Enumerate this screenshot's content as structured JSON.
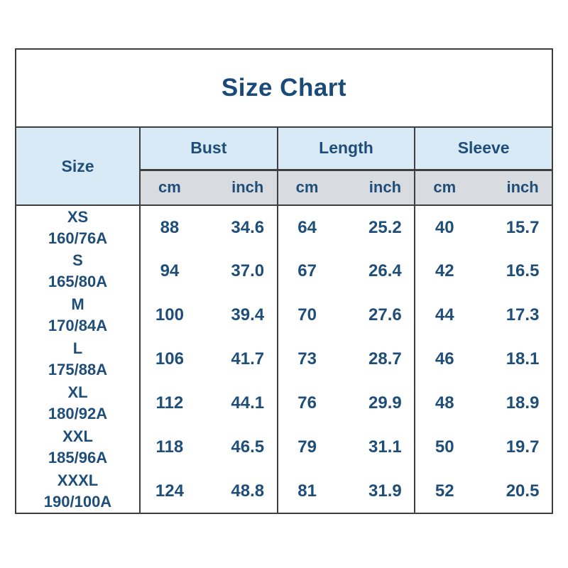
{
  "title": "Size Chart",
  "colors": {
    "text_blue": "#1f4e79",
    "header_blue_bg": "#d9eaf7",
    "unit_gray_bg": "#d8dce1",
    "border_dark": "#3f3f3f",
    "background": "#ffffff"
  },
  "table": {
    "size_header": "Size",
    "groups": [
      {
        "label": "Bust"
      },
      {
        "label": "Length"
      },
      {
        "label": "Sleeve"
      }
    ],
    "units": [
      "cm",
      "inch"
    ],
    "rows": [
      {
        "size": "XS",
        "spec": "160/76A",
        "bust_cm": "88",
        "bust_inch": "34.6",
        "length_cm": "64",
        "length_inch": "25.2",
        "sleeve_cm": "40",
        "sleeve_inch": "15.7"
      },
      {
        "size": "S",
        "spec": "165/80A",
        "bust_cm": "94",
        "bust_inch": "37.0",
        "length_cm": "67",
        "length_inch": "26.4",
        "sleeve_cm": "42",
        "sleeve_inch": "16.5"
      },
      {
        "size": "M",
        "spec": "170/84A",
        "bust_cm": "100",
        "bust_inch": "39.4",
        "length_cm": "70",
        "length_inch": "27.6",
        "sleeve_cm": "44",
        "sleeve_inch": "17.3"
      },
      {
        "size": "L",
        "spec": "175/88A",
        "bust_cm": "106",
        "bust_inch": "41.7",
        "length_cm": "73",
        "length_inch": "28.7",
        "sleeve_cm": "46",
        "sleeve_inch": "18.1"
      },
      {
        "size": "XL",
        "spec": "180/92A",
        "bust_cm": "112",
        "bust_inch": "44.1",
        "length_cm": "76",
        "length_inch": "29.9",
        "sleeve_cm": "48",
        "sleeve_inch": "18.9"
      },
      {
        "size": "XXL",
        "spec": "185/96A",
        "bust_cm": "118",
        "bust_inch": "46.5",
        "length_cm": "79",
        "length_inch": "31.1",
        "sleeve_cm": "50",
        "sleeve_inch": "19.7"
      },
      {
        "size": "XXXL",
        "spec": "190/100A",
        "bust_cm": "124",
        "bust_inch": "48.8",
        "length_cm": "81",
        "length_inch": "31.9",
        "sleeve_cm": "52",
        "sleeve_inch": "20.5"
      }
    ]
  },
  "chart_data": {
    "type": "table",
    "title": "Size Chart",
    "columns": [
      "Size",
      "Bust cm",
      "Bust inch",
      "Length cm",
      "Length inch",
      "Sleeve cm",
      "Sleeve inch"
    ],
    "rows": [
      [
        "XS 160/76A",
        88,
        34.6,
        64,
        25.2,
        40,
        15.7
      ],
      [
        "S 165/80A",
        94,
        37.0,
        67,
        26.4,
        42,
        16.5
      ],
      [
        "M 170/84A",
        100,
        39.4,
        70,
        27.6,
        44,
        17.3
      ],
      [
        "L 175/88A",
        106,
        41.7,
        73,
        28.7,
        46,
        18.1
      ],
      [
        "XL 180/92A",
        112,
        44.1,
        76,
        29.9,
        48,
        18.9
      ],
      [
        "XXL 185/96A",
        118,
        46.5,
        79,
        31.1,
        50,
        19.7
      ],
      [
        "XXXL 190/100A",
        124,
        48.8,
        81,
        31.9,
        52,
        20.5
      ]
    ]
  }
}
